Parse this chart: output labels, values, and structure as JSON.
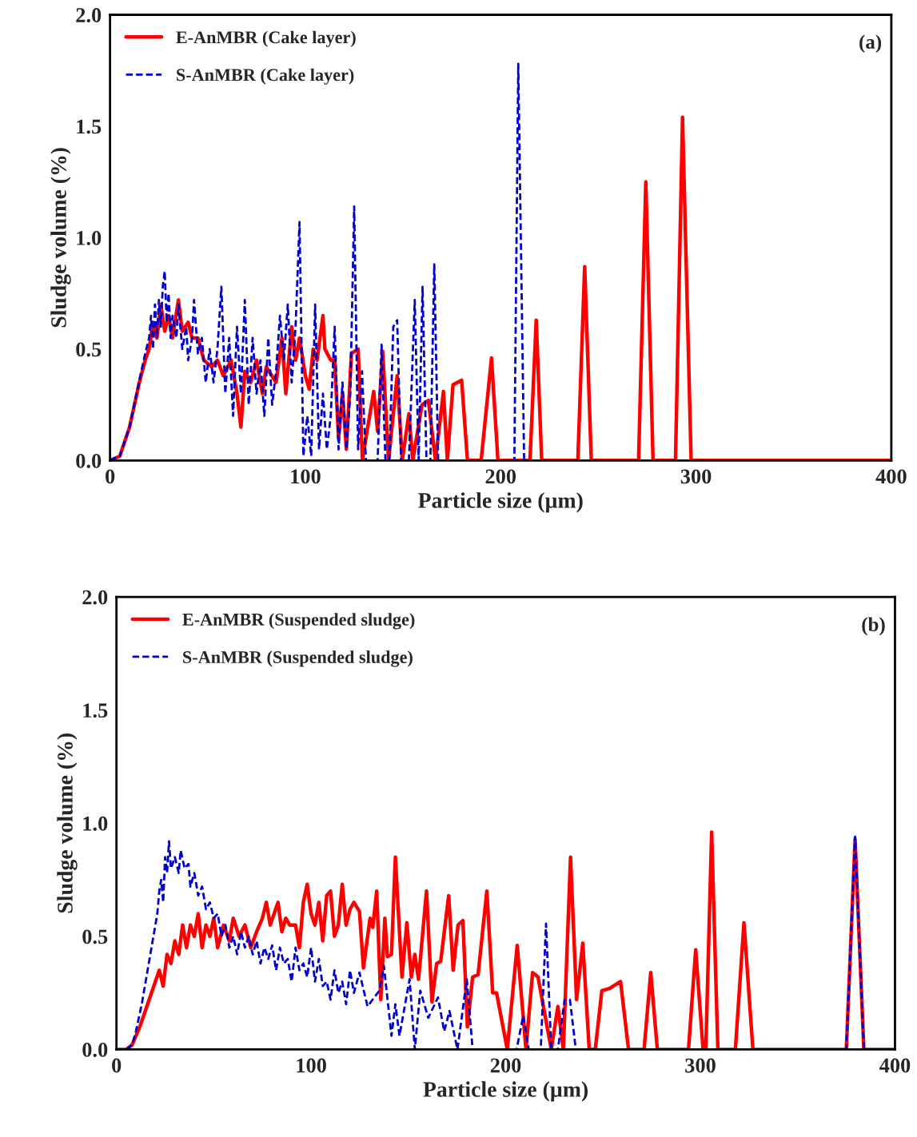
{
  "chart_data": [
    {
      "type": "line",
      "xlabel": "Particle size (µm)",
      "ylabel": "Sludge volume (%)",
      "annotations": [
        "(a)"
      ],
      "legend": "top left",
      "xlim": [
        0,
        400
      ],
      "ylim": [
        0,
        2.0
      ],
      "xticks": [
        0,
        100,
        200,
        300,
        400
      ],
      "yticks": [
        {
          "value": 0,
          "label": "0.0"
        },
        {
          "value": 0.5,
          "label": "0.5"
        },
        {
          "value": 1.0,
          "label": "1.0"
        },
        {
          "value": 1.5,
          "label": "1.5"
        },
        {
          "value": 2.0,
          "label": "2.0"
        }
      ],
      "series": [
        {
          "name": "E-AnMBR (Cake layer)",
          "color": "#ff0000",
          "line_style": "solid",
          "x": [
            0,
            5,
            10,
            15,
            18,
            20,
            22,
            24,
            26,
            28,
            30,
            32,
            35,
            37,
            40,
            42,
            45,
            48,
            52,
            55,
            58,
            62,
            65,
            67,
            69,
            72,
            75,
            78,
            80,
            85,
            88,
            90,
            93,
            95,
            97,
            100,
            102,
            104,
            106,
            109,
            110,
            113,
            115,
            117,
            119,
            121,
            123.6,
            127,
            129.2,
            131,
            135,
            137,
            139.6,
            142.6,
            147,
            149.6,
            153,
            155,
            159.7,
            163,
            166.6,
            170.7,
            172.7,
            175.6,
            180,
            183,
            190,
            195.3,
            198.6,
            215,
            218.2,
            221,
            239.5,
            243,
            246.4,
            270.6,
            274.3,
            278,
            289.5,
            293.1,
            297.5,
            400
          ],
          "values": [
            0,
            0.02,
            0.15,
            0.35,
            0.45,
            0.5,
            0.62,
            0.55,
            0.7,
            0.58,
            0.65,
            0.55,
            0.72,
            0.58,
            0.62,
            0.55,
            0.55,
            0.45,
            0.42,
            0.45,
            0.38,
            0.45,
            0.3,
            0.15,
            0.4,
            0.35,
            0.45,
            0.3,
            0.42,
            0.35,
            0.55,
            0.3,
            0.6,
            0.45,
            0.55,
            0.38,
            0.32,
            0.5,
            0.45,
            0.65,
            0.5,
            0.45,
            0.45,
            0.1,
            0.3,
            0.05,
            0.48,
            0.5,
            0,
            0.1,
            0.31,
            0.13,
            0.49,
            0,
            0.38,
            0,
            0.21,
            0,
            0.25,
            0.27,
            0,
            0.31,
            0,
            0.34,
            0.36,
            0,
            0,
            0.46,
            0,
            0,
            0.63,
            0,
            0,
            0.87,
            0,
            0,
            1.25,
            0,
            0,
            1.54,
            0,
            0
          ]
        },
        {
          "name": "S-AnMBR (Cake layer)",
          "color": "#0000cc",
          "line_style": "dashed",
          "x": [
            0,
            5,
            10,
            15,
            18,
            20,
            21,
            22,
            23,
            24,
            25,
            26,
            27,
            28,
            29,
            30,
            31,
            32,
            34,
            35,
            37,
            39,
            40,
            42,
            43,
            45,
            47,
            49,
            51,
            53,
            55,
            57,
            59,
            61,
            63,
            65,
            67,
            69,
            71,
            73,
            75,
            77,
            79,
            81,
            83,
            85,
            87,
            89,
            91,
            93,
            95,
            97,
            99,
            101,
            103,
            105,
            107,
            109,
            111,
            113,
            115,
            117,
            119,
            121,
            123,
            125,
            127,
            129,
            131,
            137,
            139,
            141,
            143,
            145,
            147,
            149,
            153,
            156,
            158,
            160,
            162,
            164,
            166,
            168,
            207,
            209,
            212,
            400
          ],
          "values": [
            0,
            0.02,
            0.15,
            0.36,
            0.48,
            0.55,
            0.65,
            0.5,
            0.7,
            0.55,
            0.72,
            0.6,
            0.78,
            0.85,
            0.62,
            0.75,
            0.55,
            0.65,
            0.55,
            0.7,
            0.5,
            0.6,
            0.45,
            0.55,
            0.72,
            0.48,
            0.55,
            0.35,
            0.5,
            0.35,
            0.5,
            0.78,
            0.3,
            0.55,
            0.2,
            0.6,
            0.3,
            0.72,
            0.25,
            0.55,
            0.3,
            0.45,
            0.2,
            0.55,
            0.25,
            0.4,
            0.65,
            0.45,
            0.7,
            0.35,
            0.6,
            1.07,
            0.02,
            0.2,
            0.02,
            0.7,
            0.05,
            0.3,
            0.05,
            0.2,
            0.6,
            0.05,
            0.35,
            0.05,
            0.3,
            1.14,
            0.05,
            0.4,
            0,
            0,
            0.52,
            0,
            0,
            0.6,
            0.63,
            0,
            0,
            0.72,
            0,
            0.78,
            0,
            0,
            0.88,
            0,
            0,
            1.78,
            0,
            0
          ]
        }
      ]
    },
    {
      "type": "line",
      "xlabel": "Particle size (µm)",
      "ylabel": "Sludge volume (%)",
      "annotations": [
        "(b)"
      ],
      "legend": "top left",
      "xlim": [
        0,
        400
      ],
      "ylim": [
        0,
        2.0
      ],
      "xticks": [
        0,
        100,
        200,
        300,
        400
      ],
      "yticks": [
        {
          "value": 0,
          "label": "0.0"
        },
        {
          "value": 0.5,
          "label": "0.5"
        },
        {
          "value": 1.0,
          "label": "1.0"
        },
        {
          "value": 1.5,
          "label": "1.5"
        },
        {
          "value": 2.0,
          "label": "2.0"
        }
      ],
      "series": [
        {
          "name": "E-AnMBR (Suspended sludge)",
          "color": "#ff0000",
          "line_style": "solid",
          "x": [
            0,
            5,
            8,
            12,
            16,
            20,
            22,
            24,
            26,
            28,
            30,
            32,
            34,
            36,
            38,
            40,
            42,
            44,
            46,
            48,
            50,
            52,
            55,
            58,
            60,
            63,
            66,
            69,
            72,
            75,
            77,
            79,
            81,
            83,
            85,
            87,
            89,
            92,
            94,
            96,
            98,
            100,
            102,
            104,
            106,
            108,
            110,
            112,
            114,
            116,
            118,
            120,
            122,
            124.85,
            126.9,
            130.3,
            131.7,
            133.7,
            135.8,
            137.9,
            139.2,
            141.3,
            143.3,
            146.7,
            149.2,
            151.5,
            153.3,
            155.2,
            159.3,
            162.1,
            164.5,
            166.6,
            170.7,
            173.0,
            175.5,
            178.0,
            180.3,
            183.0,
            185.8,
            190.3,
            193.3,
            195.3,
            200.8,
            205.9,
            210.4,
            213.8,
            216.6,
            223.4,
            226.8,
            229.6,
            233.3,
            236.4,
            239.6,
            242.9,
            246.0,
            249.4,
            253.5,
            259.0,
            263.1,
            271.1,
            274.5,
            277.9,
            293.9,
            297.6,
            301.4,
            302.8,
            305.8,
            309,
            318,
            322.4,
            327,
            375,
            379.5,
            384,
            400
          ],
          "values": [
            0,
            0,
            0.02,
            0.1,
            0.2,
            0.3,
            0.35,
            0.28,
            0.42,
            0.38,
            0.48,
            0.42,
            0.55,
            0.45,
            0.55,
            0.5,
            0.6,
            0.45,
            0.55,
            0.5,
            0.58,
            0.45,
            0.55,
            0.48,
            0.58,
            0.5,
            0.55,
            0.45,
            0.52,
            0.58,
            0.65,
            0.55,
            0.6,
            0.65,
            0.52,
            0.58,
            0.55,
            0.55,
            0.45,
            0.65,
            0.73,
            0.6,
            0.55,
            0.65,
            0.48,
            0.68,
            0.7,
            0.5,
            0.55,
            0.73,
            0.55,
            0.62,
            0.65,
            0.61,
            0.36,
            0.58,
            0.54,
            0.7,
            0.22,
            0.58,
            0.41,
            0.42,
            0.85,
            0.32,
            0.56,
            0.32,
            0.42,
            0.31,
            0.7,
            0.21,
            0.38,
            0.39,
            0.68,
            0.35,
            0.55,
            0.57,
            0.1,
            0.32,
            0.33,
            0.7,
            0.25,
            0.25,
            0,
            0.46,
            0,
            0.34,
            0.32,
            0,
            0.19,
            0,
            0.85,
            0.22,
            0.47,
            0,
            0,
            0.26,
            0.27,
            0.3,
            0,
            0,
            0.34,
            0,
            0,
            0.44,
            0,
            0,
            0.96,
            0,
            0,
            0.56,
            0,
            0,
            0.93,
            0,
            0
          ]
        },
        {
          "name": "S-AnMBR (Suspended sludge)",
          "color": "#0000cc",
          "line_style": "dashed",
          "x": [
            0,
            5,
            8,
            10,
            13,
            15,
            17,
            19,
            21,
            22,
            23,
            24,
            25,
            26,
            27,
            28,
            30,
            32,
            33,
            35,
            37,
            38,
            40,
            42,
            44,
            46,
            48,
            50,
            52,
            54,
            56,
            58,
            60,
            62,
            64,
            66,
            68,
            70,
            72,
            74,
            76,
            78,
            80,
            82,
            84,
            86,
            88,
            90,
            92,
            94,
            96,
            98,
            100,
            102,
            104,
            106,
            108,
            110,
            112,
            114,
            116,
            118,
            120,
            122,
            124.85,
            129,
            135.1,
            137.4,
            141.3,
            143.3,
            145.4,
            150.6,
            153.3,
            156.1,
            160.2,
            165.2,
            168.4,
            171.1,
            175.2,
            180,
            183,
            205.6,
            209,
            211.8,
            218,
            220.7,
            223.4,
            226.8,
            230.3,
            233,
            236,
            375,
            379.5,
            384,
            400
          ],
          "values": [
            0,
            0,
            0.02,
            0.08,
            0.2,
            0.3,
            0.4,
            0.5,
            0.6,
            0.7,
            0.75,
            0.65,
            0.85,
            0.78,
            0.92,
            0.8,
            0.85,
            0.78,
            0.88,
            0.8,
            0.82,
            0.72,
            0.78,
            0.68,
            0.72,
            0.62,
            0.65,
            0.58,
            0.6,
            0.5,
            0.55,
            0.45,
            0.5,
            0.42,
            0.52,
            0.45,
            0.5,
            0.42,
            0.48,
            0.38,
            0.45,
            0.4,
            0.46,
            0.35,
            0.45,
            0.38,
            0.4,
            0.3,
            0.45,
            0.35,
            0.38,
            0.32,
            0.45,
            0.3,
            0.4,
            0.28,
            0.3,
            0.22,
            0.35,
            0.25,
            0.3,
            0.2,
            0.35,
            0.25,
            0.34,
            0.19,
            0.26,
            0.37,
            0.06,
            0.2,
            0.06,
            0.31,
            0,
            0.26,
            0.14,
            0.23,
            0.08,
            0.17,
            0,
            0.31,
            0,
            0,
            0.15,
            0,
            0,
            0.556,
            0,
            0,
            0.22,
            0.22,
            0,
            0,
            0.94,
            0,
            0
          ]
        }
      ]
    }
  ]
}
